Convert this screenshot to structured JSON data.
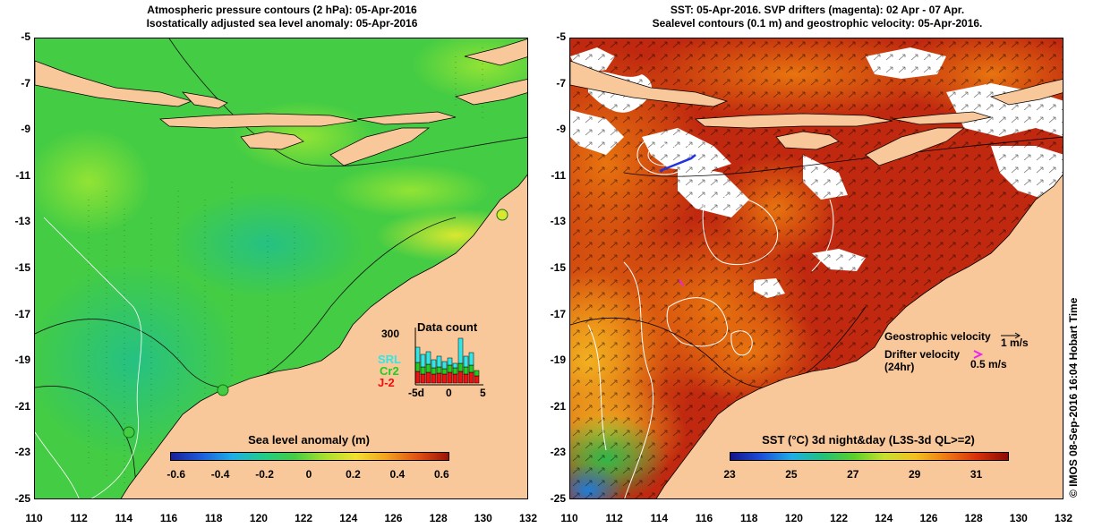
{
  "left_panel": {
    "title_line1": "Atmospheric pressure contours (2 hPa): 05-Apr-2016",
    "title_line2": "Isostatically adjusted sea level anomaly: 05-Apr-2016",
    "colorbar_title": "Sea level anomaly (m)",
    "colorbar_ticks": [
      "-0.6",
      "-0.4",
      "-0.2",
      "0",
      "0.2",
      "0.4",
      "0.6"
    ],
    "colorbar_range": [
      -0.6,
      0.6
    ],
    "inset": {
      "title": "Data count",
      "ymax_label": "300",
      "x_labels": [
        "-5d",
        "0",
        "5"
      ],
      "legend": [
        {
          "label": "SRL",
          "color": "#33e6e6"
        },
        {
          "label": "Cr2",
          "color": "#22cc22"
        },
        {
          "label": "J-2",
          "color": "#ee1111"
        }
      ]
    }
  },
  "right_panel": {
    "title_line1": "SST: 05-Apr-2016. SVP drifters (magenta): 02 Apr - 07 Apr.",
    "title_line2": "Sealevel contours (0.1 m) and geostrophic velocity: 05-Apr-2016.",
    "colorbar_title": "SST (°C) 3d night&day (L3S-3d QL>=2)",
    "colorbar_ticks": [
      "23",
      "25",
      "27",
      "29",
      "31"
    ],
    "colorbar_range": [
      22,
      32
    ],
    "legend": {
      "geostrophic_label": "Geostrophic velocity",
      "geostrophic_scale": "1 m/s",
      "drifter_label_line1": "Drifter velocity",
      "drifter_label_line2": "(24hr)",
      "drifter_scale": "0.5 m/s"
    }
  },
  "axes": {
    "y_ticks": [
      "-5",
      "-7",
      "-9",
      "-11",
      "-13",
      "-15",
      "-17",
      "-19",
      "-21",
      "-23",
      "-25"
    ],
    "x_ticks": [
      "110",
      "112",
      "114",
      "116",
      "118",
      "120",
      "122",
      "124",
      "126",
      "128",
      "130",
      "132"
    ],
    "lon_range": [
      110,
      132
    ],
    "lat_range": [
      -25,
      -5
    ]
  },
  "side_label": "© IMOS 08-Sep-2016 16:04 Hobart Time",
  "colors": {
    "land": "#f8c79a",
    "sla_base": "#44cc44",
    "sst_base": "#c0290f"
  }
}
